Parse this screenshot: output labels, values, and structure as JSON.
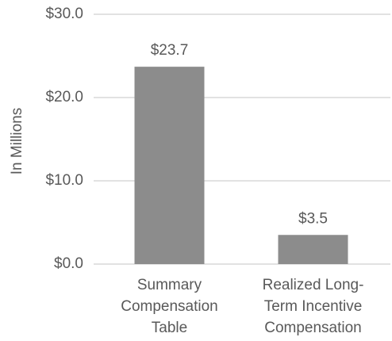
{
  "chart_data": {
    "type": "bar",
    "y_label": "In Millions",
    "categories": [
      "Summary\nCompensation\nTable",
      "Realized Long-\nTerm Incentive\nCompensation"
    ],
    "values": [
      23.7,
      3.5
    ],
    "value_labels": [
      "$23.7",
      "$3.5"
    ],
    "color": "#8c8c8c",
    "ylim": [
      0,
      30
    ],
    "yticks": [
      {
        "value": 0,
        "label": "$0.0"
      },
      {
        "value": 10,
        "label": "$10.0"
      },
      {
        "value": 20,
        "label": "$20.0"
      },
      {
        "value": 30,
        "label": "$30.0"
      }
    ],
    "grid": true
  }
}
